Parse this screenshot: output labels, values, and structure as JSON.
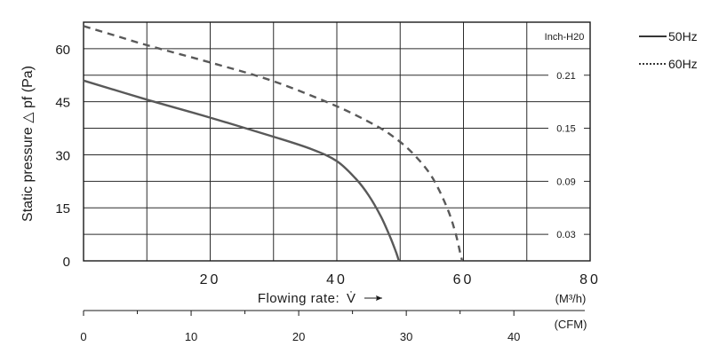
{
  "chart_data": {
    "type": "line",
    "xlabel": "Flowing rate:",
    "xlabel_symbol": "V̇",
    "ylabel": "Static pressure △ pf (Pa)",
    "xlim": [
      0,
      80
    ],
    "ylim": [
      0,
      67.5
    ],
    "x_ticks": [
      "20",
      "40",
      "60",
      "80"
    ],
    "x_unit": "(M³/h)",
    "y_ticks": [
      "0",
      "15",
      "30",
      "45",
      "60"
    ],
    "secondary_y": {
      "title": "Inch-H20",
      "ticks": [
        {
          "label": "0.03",
          "pa": 7.5
        },
        {
          "label": "0.09",
          "pa": 22.5
        },
        {
          "label": "0.15",
          "pa": 37.5
        },
        {
          "label": "0.21",
          "pa": 52.5
        }
      ]
    },
    "cfm_axis": {
      "unit": "(CFM)",
      "cfm_per_m3h": 0.5886,
      "ticks": [
        "0",
        "10",
        "20",
        "30",
        "40"
      ]
    },
    "grid": true,
    "legend": "outside-right",
    "series": [
      {
        "name": "50Hz",
        "style": "solid",
        "color": "#595959",
        "points": [
          [
            0,
            51
          ],
          [
            10,
            45.6
          ],
          [
            20,
            40.5
          ],
          [
            30,
            35.1
          ],
          [
            36,
            31.6
          ],
          [
            40,
            28.2
          ],
          [
            43,
            23.2
          ],
          [
            45,
            18.6
          ],
          [
            47,
            12.4
          ],
          [
            48.5,
            6.4
          ],
          [
            49.4,
            2.2
          ],
          [
            49.8,
            0
          ]
        ]
      },
      {
        "name": "60Hz",
        "style": "dashed",
        "color": "#595959",
        "points": [
          [
            0,
            66.4
          ],
          [
            5,
            63.7
          ],
          [
            10,
            61
          ],
          [
            20,
            56.1
          ],
          [
            30,
            50.8
          ],
          [
            40,
            43.7
          ],
          [
            46,
            38.4
          ],
          [
            49,
            35
          ],
          [
            52,
            30.4
          ],
          [
            55,
            23.8
          ],
          [
            57.5,
            14.6
          ],
          [
            58.8,
            7.4
          ],
          [
            59.5,
            2.1
          ],
          [
            59.8,
            0
          ]
        ]
      }
    ]
  }
}
